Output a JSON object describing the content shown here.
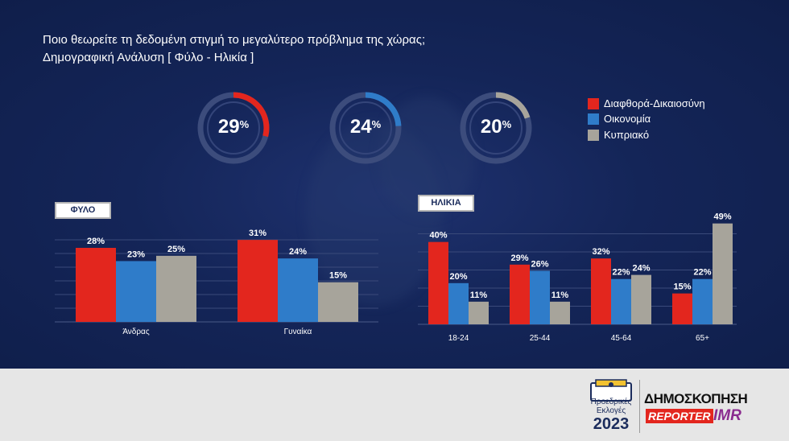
{
  "title": "Ποιο θεωρείτε τη δεδομένη στιγμή το μεγαλύτερο πρόβλημα της χώρας;",
  "subtitle": "Δημογραφική Ανάλυση [ Φύλο - Ηλικία ]",
  "colors": {
    "red": "#e3261e",
    "blue": "#2f7cc9",
    "gray": "#a7a49b",
    "background": "#142558"
  },
  "legend": [
    {
      "label": "Διαφθορά-Δικαιοσύνη",
      "color": "#e3261e"
    },
    {
      "label": "Οικονομία",
      "color": "#2f7cc9"
    },
    {
      "label": "Κυπριακό",
      "color": "#a7a49b"
    }
  ],
  "rings": [
    {
      "value": 29,
      "number": "29",
      "unit": "%",
      "color": "#e3261e"
    },
    {
      "value": 24,
      "number": "24",
      "unit": "%",
      "color": "#2f7cc9"
    },
    {
      "value": 20,
      "number": "20",
      "unit": "%",
      "color": "#a7a49b"
    }
  ],
  "footer": {
    "logo1_line1": "Προεδρικές",
    "logo1_line2": "Εκλογές",
    "logo1_year": "2023",
    "logo2_title": "ΔΗΜΟΣΚΟΠΗΣΗ",
    "logo2_brand1": "REPORTER",
    "logo2_brand2": "IMR"
  },
  "chart_data": [
    {
      "type": "bar",
      "title": "ΦΥΛΟ",
      "categories": [
        "Άνδρας",
        "Γυναίκα"
      ],
      "series": [
        {
          "name": "Διαφθορά-Δικαιοσύνη",
          "values": [
            28,
            31
          ],
          "labels": [
            "28%",
            "31%"
          ]
        },
        {
          "name": "Οικονομία",
          "values": [
            23,
            24
          ],
          "labels": [
            "23%",
            "24%"
          ]
        },
        {
          "name": "Κυπριακό",
          "values": [
            25,
            15
          ],
          "labels": [
            "25%",
            "15%"
          ]
        }
      ],
      "ylim": [
        0,
        35
      ],
      "grid": true
    },
    {
      "type": "bar",
      "title": "ΗΛΙΚΙΑ",
      "categories": [
        "18-24",
        "25-44",
        "45-64",
        "65+"
      ],
      "series": [
        {
          "name": "Διαφθορά-Δικαιοσύνη",
          "values": [
            40,
            29,
            32,
            15
          ],
          "labels": [
            "40%",
            "29%",
            "32%",
            "15%"
          ]
        },
        {
          "name": "Οικονομία",
          "values": [
            20,
            26,
            22,
            22
          ],
          "labels": [
            "20%",
            "26%",
            "22%",
            "22%"
          ]
        },
        {
          "name": "Κυπριακό",
          "values": [
            11,
            11,
            24,
            49
          ],
          "labels": [
            "11%",
            "11%",
            "24%",
            "49%"
          ]
        }
      ],
      "ylim": [
        0,
        52
      ],
      "grid": true
    }
  ]
}
